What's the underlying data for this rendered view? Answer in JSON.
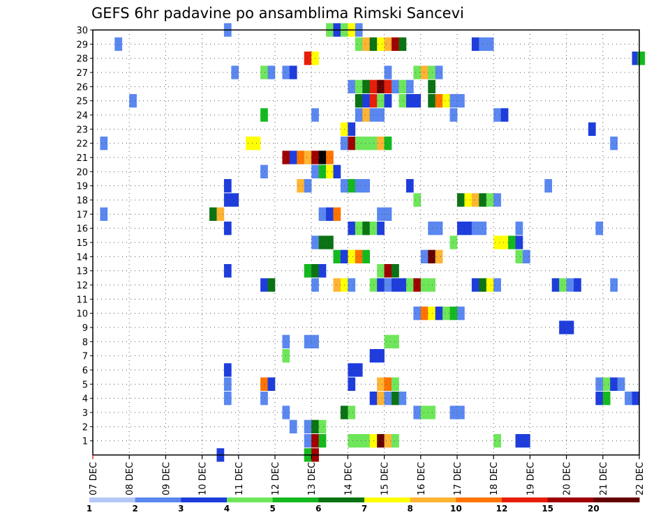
{
  "chart_data": {
    "type": "heatmap",
    "title": "GEFS 6hr padavine po ansamblima Rimski Sancevi",
    "x_tick_labels": [
      "07 DEC",
      "08 DEC",
      "09 DEC",
      "10 DEC",
      "11 DEC",
      "12 DEC",
      "13 DEC",
      "14 DEC",
      "15 DEC",
      "16 DEC",
      "17 DEC",
      "18 DEC",
      "19 DEC",
      "20 DEC",
      "21 DEC",
      "22 DEC"
    ],
    "x_range_days": [
      0,
      15
    ],
    "y_tick_labels": [
      "1",
      "2",
      "3",
      "4",
      "5",
      "6",
      "7",
      "8",
      "9",
      "10",
      "11",
      "12",
      "13",
      "14",
      "15",
      "16",
      "17",
      "18",
      "19",
      "20",
      "21",
      "22",
      "23",
      "24",
      "25",
      "26",
      "27",
      "28",
      "29",
      "30"
    ],
    "y_range": [
      0,
      30
    ],
    "grid": true,
    "colorbar": {
      "colors": [
        "#b4c8f5",
        "#5a87f0",
        "#1e3ddc",
        "#6ee65a",
        "#14b91e",
        "#0a7314",
        "#ffff00",
        "#ffb432",
        "#ff7300",
        "#e61e0a",
        "#a00000",
        "#640000"
      ],
      "labels": [
        "1",
        "2",
        "3",
        "4",
        "5",
        "6",
        "7",
        "8",
        "10",
        "12",
        "15",
        "20"
      ]
    },
    "cells": [
      [
        30,
        3.6,
        1
      ],
      [
        30,
        6.4,
        3
      ],
      [
        30,
        6.6,
        2
      ],
      [
        30,
        6.8,
        3
      ],
      [
        30,
        7.0,
        6
      ],
      [
        30,
        7.2,
        1
      ],
      [
        29,
        0.6,
        1
      ],
      [
        29,
        7.2,
        3
      ],
      [
        29,
        7.4,
        7
      ],
      [
        29,
        7.6,
        5
      ],
      [
        29,
        7.8,
        6
      ],
      [
        29,
        8.0,
        7
      ],
      [
        29,
        8.2,
        10
      ],
      [
        29,
        8.4,
        5
      ],
      [
        29,
        10.4,
        2
      ],
      [
        29,
        10.6,
        1
      ],
      [
        29,
        10.8,
        1
      ],
      [
        28,
        5.8,
        9
      ],
      [
        28,
        6.0,
        6
      ],
      [
        28,
        14.8,
        2
      ],
      [
        28,
        14.95,
        4
      ],
      [
        27,
        3.8,
        1
      ],
      [
        27,
        4.6,
        3
      ],
      [
        27,
        4.8,
        1
      ],
      [
        27,
        5.2,
        1
      ],
      [
        27,
        5.4,
        2
      ],
      [
        27,
        8.0,
        1
      ],
      [
        27,
        8.8,
        3
      ],
      [
        27,
        9.0,
        7
      ],
      [
        27,
        9.2,
        3
      ],
      [
        27,
        9.4,
        1
      ],
      [
        26,
        7.0,
        1
      ],
      [
        26,
        7.2,
        3
      ],
      [
        26,
        7.4,
        5
      ],
      [
        26,
        7.6,
        9
      ],
      [
        26,
        7.8,
        11
      ],
      [
        26,
        8.0,
        9
      ],
      [
        26,
        8.2,
        1
      ],
      [
        26,
        8.4,
        3
      ],
      [
        26,
        8.6,
        1
      ],
      [
        26,
        9.2,
        5
      ],
      [
        25,
        1.0,
        1
      ],
      [
        25,
        7.2,
        5
      ],
      [
        25,
        7.4,
        2
      ],
      [
        25,
        7.6,
        9
      ],
      [
        25,
        7.8,
        3
      ],
      [
        25,
        8.0,
        2
      ],
      [
        25,
        8.4,
        3
      ],
      [
        25,
        8.6,
        2
      ],
      [
        25,
        8.8,
        2
      ],
      [
        25,
        9.2,
        5
      ],
      [
        25,
        9.4,
        8
      ],
      [
        25,
        9.6,
        6
      ],
      [
        25,
        9.8,
        1
      ],
      [
        25,
        10.0,
        1
      ],
      [
        24,
        4.6,
        4
      ],
      [
        24,
        6.0,
        1
      ],
      [
        24,
        7.2,
        1
      ],
      [
        24,
        7.4,
        7
      ],
      [
        24,
        7.6,
        1
      ],
      [
        24,
        7.8,
        1
      ],
      [
        24,
        9.8,
        1
      ],
      [
        24,
        11.0,
        1
      ],
      [
        24,
        11.2,
        2
      ],
      [
        23,
        6.8,
        6
      ],
      [
        23,
        7.0,
        2
      ],
      [
        23,
        13.6,
        2
      ],
      [
        22,
        0.2,
        1
      ],
      [
        22,
        4.2,
        6
      ],
      [
        22,
        4.4,
        6
      ],
      [
        22,
        6.8,
        1
      ],
      [
        22,
        7.0,
        10
      ],
      [
        22,
        7.2,
        3
      ],
      [
        22,
        7.4,
        3
      ],
      [
        22,
        7.6,
        3
      ],
      [
        22,
        7.8,
        7
      ],
      [
        22,
        8.0,
        4
      ],
      [
        22,
        14.2,
        1
      ],
      [
        21,
        5.2,
        10
      ],
      [
        21,
        5.4,
        2
      ],
      [
        21,
        5.6,
        8
      ],
      [
        21,
        5.8,
        7
      ],
      [
        21,
        6.0,
        10
      ],
      [
        21,
        6.2,
        12
      ],
      [
        21,
        6.4,
        8
      ],
      [
        20,
        4.6,
        1
      ],
      [
        20,
        6.0,
        1
      ],
      [
        20,
        6.2,
        4
      ],
      [
        20,
        6.4,
        6
      ],
      [
        20,
        6.6,
        2
      ],
      [
        19,
        3.6,
        2
      ],
      [
        19,
        5.6,
        7
      ],
      [
        19,
        5.8,
        1
      ],
      [
        19,
        6.8,
        1
      ],
      [
        19,
        7.0,
        4
      ],
      [
        19,
        7.2,
        1
      ],
      [
        19,
        7.4,
        1
      ],
      [
        19,
        8.6,
        2
      ],
      [
        19,
        12.4,
        1
      ],
      [
        18,
        3.6,
        2
      ],
      [
        18,
        3.8,
        2
      ],
      [
        18,
        8.8,
        3
      ],
      [
        18,
        10.0,
        5
      ],
      [
        18,
        10.2,
        6
      ],
      [
        18,
        10.4,
        7
      ],
      [
        18,
        10.6,
        5
      ],
      [
        18,
        10.8,
        3
      ],
      [
        18,
        11.0,
        1
      ],
      [
        17,
        0.2,
        1
      ],
      [
        17,
        3.2,
        5
      ],
      [
        17,
        3.4,
        7
      ],
      [
        17,
        6.2,
        1
      ],
      [
        17,
        6.4,
        2
      ],
      [
        17,
        6.6,
        8
      ],
      [
        17,
        7.8,
        1
      ],
      [
        17,
        8.0,
        1
      ],
      [
        16,
        3.6,
        2
      ],
      [
        16,
        7.0,
        2
      ],
      [
        16,
        7.2,
        3
      ],
      [
        16,
        7.4,
        5
      ],
      [
        16,
        7.6,
        3
      ],
      [
        16,
        7.8,
        2
      ],
      [
        16,
        9.2,
        1
      ],
      [
        16,
        9.4,
        1
      ],
      [
        16,
        10.0,
        2
      ],
      [
        16,
        10.2,
        2
      ],
      [
        16,
        10.4,
        1
      ],
      [
        16,
        10.6,
        1
      ],
      [
        16,
        11.6,
        1
      ],
      [
        16,
        13.8,
        1
      ],
      [
        15,
        6.0,
        1
      ],
      [
        15,
        6.2,
        5
      ],
      [
        15,
        6.4,
        5
      ],
      [
        15,
        9.8,
        3
      ],
      [
        15,
        11.0,
        6
      ],
      [
        15,
        11.2,
        6
      ],
      [
        15,
        11.4,
        4
      ],
      [
        15,
        11.6,
        2
      ],
      [
        14,
        6.6,
        4
      ],
      [
        14,
        6.8,
        2
      ],
      [
        14,
        7.0,
        6
      ],
      [
        14,
        7.2,
        8
      ],
      [
        14,
        7.4,
        4
      ],
      [
        14,
        9.0,
        1
      ],
      [
        14,
        9.2,
        11
      ],
      [
        14,
        9.4,
        7
      ],
      [
        14,
        11.6,
        3
      ],
      [
        14,
        11.8,
        1
      ],
      [
        13,
        3.6,
        2
      ],
      [
        13,
        5.8,
        4
      ],
      [
        13,
        6.0,
        5
      ],
      [
        13,
        6.2,
        2
      ],
      [
        13,
        7.8,
        3
      ],
      [
        13,
        8.0,
        10
      ],
      [
        13,
        8.2,
        5
      ],
      [
        12,
        4.6,
        2
      ],
      [
        12,
        4.8,
        5
      ],
      [
        12,
        6.0,
        1
      ],
      [
        12,
        6.6,
        7
      ],
      [
        12,
        6.8,
        6
      ],
      [
        12,
        7.0,
        1
      ],
      [
        12,
        7.6,
        3
      ],
      [
        12,
        7.8,
        2
      ],
      [
        12,
        8.0,
        1
      ],
      [
        12,
        8.2,
        2
      ],
      [
        12,
        8.4,
        2
      ],
      [
        12,
        8.6,
        3
      ],
      [
        12,
        8.8,
        10
      ],
      [
        12,
        9.0,
        3
      ],
      [
        12,
        9.2,
        3
      ],
      [
        12,
        10.4,
        2
      ],
      [
        12,
        10.6,
        5
      ],
      [
        12,
        10.8,
        6
      ],
      [
        12,
        11.0,
        1
      ],
      [
        12,
        12.6,
        2
      ],
      [
        12,
        12.8,
        3
      ],
      [
        12,
        13.0,
        1
      ],
      [
        12,
        13.2,
        2
      ],
      [
        12,
        14.2,
        1
      ],
      [
        10,
        8.8,
        1
      ],
      [
        10,
        9.0,
        8
      ],
      [
        10,
        9.2,
        6
      ],
      [
        10,
        9.4,
        2
      ],
      [
        10,
        9.6,
        3
      ],
      [
        10,
        9.8,
        4
      ],
      [
        10,
        10.0,
        1
      ],
      [
        9,
        12.8,
        2
      ],
      [
        9,
        13.0,
        2
      ],
      [
        8,
        5.2,
        1
      ],
      [
        8,
        5.8,
        1
      ],
      [
        8,
        6.0,
        1
      ],
      [
        8,
        8.0,
        3
      ],
      [
        8,
        8.2,
        3
      ],
      [
        7,
        5.2,
        3
      ],
      [
        7,
        7.6,
        2
      ],
      [
        7,
        7.8,
        2
      ],
      [
        6,
        3.6,
        2
      ],
      [
        6,
        7.0,
        2
      ],
      [
        6,
        7.2,
        2
      ],
      [
        5,
        3.6,
        1
      ],
      [
        5,
        4.6,
        8
      ],
      [
        5,
        4.8,
        2
      ],
      [
        5,
        7.0,
        2
      ],
      [
        5,
        7.8,
        7
      ],
      [
        5,
        8.0,
        8
      ],
      [
        5,
        8.2,
        3
      ],
      [
        5,
        13.8,
        1
      ],
      [
        5,
        14.0,
        3
      ],
      [
        5,
        14.2,
        2
      ],
      [
        5,
        14.4,
        1
      ],
      [
        4,
        3.6,
        1
      ],
      [
        4,
        4.6,
        1
      ],
      [
        4,
        7.6,
        2
      ],
      [
        4,
        7.8,
        7
      ],
      [
        4,
        8.0,
        1
      ],
      [
        4,
        8.2,
        5
      ],
      [
        4,
        8.4,
        1
      ],
      [
        4,
        13.8,
        2
      ],
      [
        4,
        14.0,
        4
      ],
      [
        4,
        14.6,
        1
      ],
      [
        4,
        14.8,
        2
      ],
      [
        3,
        5.2,
        1
      ],
      [
        3,
        6.8,
        5
      ],
      [
        3,
        7.0,
        3
      ],
      [
        3,
        8.8,
        1
      ],
      [
        3,
        9.0,
        3
      ],
      [
        3,
        9.2,
        3
      ],
      [
        3,
        9.8,
        1
      ],
      [
        3,
        10.0,
        1
      ],
      [
        2,
        5.4,
        1
      ],
      [
        2,
        5.8,
        1
      ],
      [
        2,
        6.0,
        5
      ],
      [
        2,
        6.2,
        3
      ],
      [
        1,
        5.8,
        1
      ],
      [
        1,
        6.0,
        10
      ],
      [
        1,
        6.2,
        4
      ],
      [
        1,
        7.0,
        3
      ],
      [
        1,
        7.2,
        3
      ],
      [
        1,
        7.4,
        3
      ],
      [
        1,
        7.6,
        6
      ],
      [
        1,
        7.8,
        11
      ],
      [
        1,
        8.0,
        7
      ],
      [
        1,
        8.2,
        3
      ],
      [
        1,
        11.0,
        3
      ],
      [
        1,
        11.6,
        2
      ],
      [
        1,
        11.8,
        2
      ],
      [
        0,
        3.4,
        2
      ],
      [
        0,
        5.8,
        4
      ],
      [
        0,
        6.0,
        10
      ]
    ]
  }
}
